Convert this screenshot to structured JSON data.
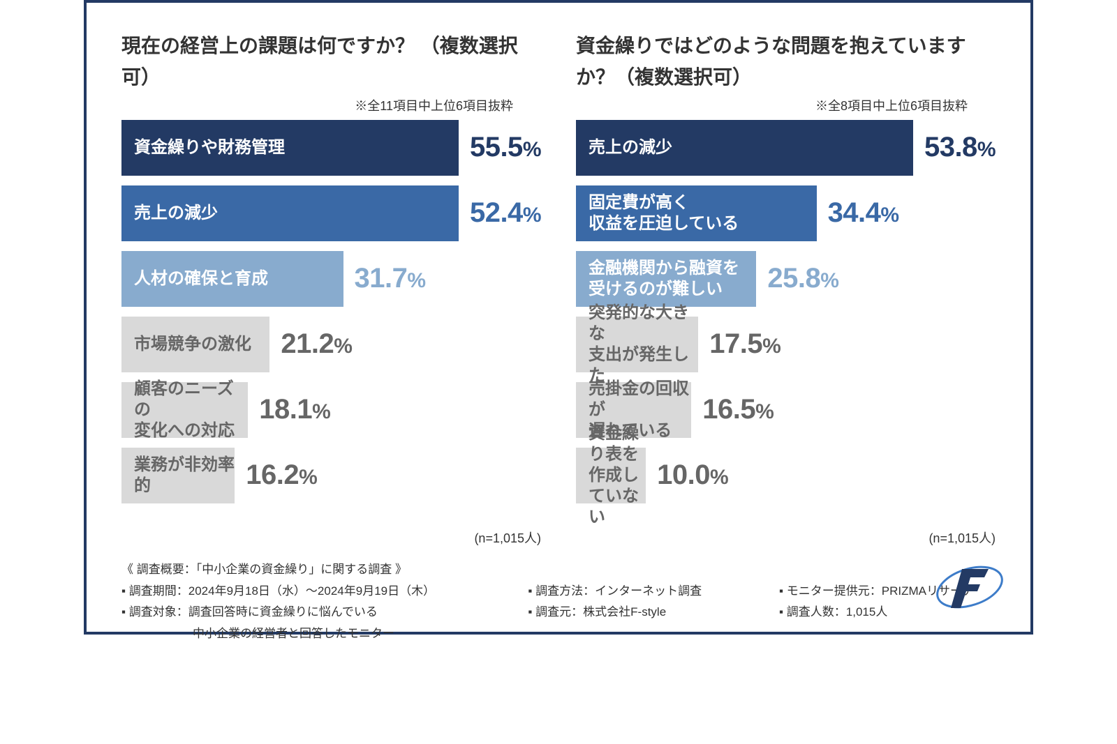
{
  "scale_max": 60,
  "bar_label_font_size": 24,
  "pct_font_size": 40,
  "title_font_size": 28,
  "palette": {
    "dark": {
      "fill": "#233a64",
      "text": "#ffffff",
      "pct": "#233a64"
    },
    "mid": {
      "fill": "#3a69a6",
      "text": "#ffffff",
      "pct": "#3a69a6"
    },
    "light": {
      "fill": "#88abce",
      "text": "#ffffff",
      "pct": "#88abce"
    },
    "gray": {
      "fill": "#d9d9d9",
      "text": "#666666",
      "pct": "#666666"
    }
  },
  "left": {
    "title": "現在の経営上の課題は何ですか？\n（複数選択可）",
    "note": "※全11項目中上位6項目抜粋",
    "n": "(n=1,015人)",
    "bars": [
      {
        "label": "資金繰りや財務管理",
        "value": 55.5,
        "tone": "dark"
      },
      {
        "label": "売上の減少",
        "value": 52.4,
        "tone": "mid"
      },
      {
        "label": "人材の確保と育成",
        "value": 31.7,
        "tone": "light"
      },
      {
        "label": "市場競争の激化",
        "value": 21.2,
        "tone": "gray"
      },
      {
        "label": "顧客のニーズの\n変化への対応",
        "value": 18.1,
        "tone": "gray"
      },
      {
        "label": "業務が非効率的",
        "value": 16.2,
        "tone": "gray"
      }
    ]
  },
  "right": {
    "title": "資金繰りではどのような問題を抱えていますか？（複数選択可）",
    "note": "※全8項目中上位6項目抜粋",
    "n": "(n=1,015人)",
    "bars": [
      {
        "label": "売上の減少",
        "value": 53.8,
        "tone": "dark"
      },
      {
        "label": "固定費が高く\n収益を圧迫している",
        "value": 34.4,
        "tone": "mid"
      },
      {
        "label": "金融機関から融資を\n受けるのが難しい",
        "value": 25.8,
        "tone": "light"
      },
      {
        "label": "突発的な大きな\n支出が発生した",
        "value": 17.5,
        "tone": "gray"
      },
      {
        "label": "売掛金の回収が\n遅れている",
        "value": 16.5,
        "tone": "gray"
      },
      {
        "label": "資金繰り表を\n作成していない",
        "value": 10.0,
        "tone": "gray"
      }
    ]
  },
  "meta": {
    "heading": "《 調査概要：「中小企業の資金繰り」に関する調査 》",
    "colA": "▪ 調査期間：2024年9月18日（水）〜2024年9月19日（木）\n▪ 調査対象：調査回答時に資金繰りに悩んでいる\n　　　　　　中小企業の経営者と回答したモニター",
    "colB": "▪ 調査方法：インターネット調査\n▪ 調査元：株式会社F-style",
    "colC": "▪ モニター提供元：PRIZMAリサーチ\n▪ 調査人数：1,015人"
  },
  "logo_colors": {
    "letter": "#233a64",
    "ring": "#3d7CC9"
  }
}
